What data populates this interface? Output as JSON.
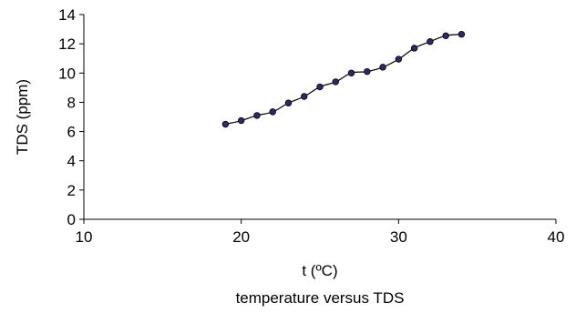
{
  "chart_data": {
    "type": "scatter",
    "xlabel": "t (ºC)",
    "ylabel": "TDS (ppm)",
    "caption": "temperature versus TDS",
    "xlim": [
      10,
      40
    ],
    "ylim": [
      0,
      14
    ],
    "xticks": [
      10,
      20,
      30,
      40
    ],
    "yticks": [
      0,
      2,
      4,
      6,
      8,
      10,
      12,
      14
    ],
    "grid": false,
    "legend": "none",
    "marker_color": "#2b2b6b",
    "line": "smoothed",
    "series": [
      {
        "x": [
          19,
          20,
          21,
          22,
          23,
          24,
          25,
          26,
          27,
          28,
          29,
          30,
          31,
          32,
          33,
          34
        ],
        "y": [
          6.5,
          6.75,
          7.1,
          7.35,
          7.95,
          8.4,
          9.05,
          9.4,
          10.0,
          10.1,
          10.4,
          10.95,
          11.7,
          12.15,
          12.55,
          12.65
        ]
      }
    ]
  }
}
